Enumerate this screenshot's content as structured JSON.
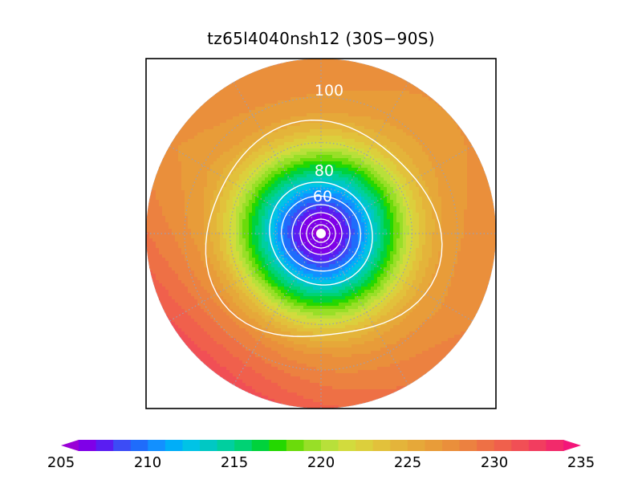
{
  "title": "tz65l4040nsh12 (30S−90S)",
  "map": {
    "projection": "polar-stereographic",
    "hemisphere": "south",
    "lat_range": [
      -90,
      -30
    ],
    "gridlines": "dotted"
  },
  "contours": {
    "color": "#ffffff",
    "labels": [
      "100",
      "80",
      "60"
    ]
  },
  "colorbar": {
    "min": 205,
    "max": 235,
    "step": 1,
    "tick_labels": [
      "205",
      "210",
      "215",
      "220",
      "225",
      "230",
      "235"
    ],
    "colors": [
      "#9a00d6",
      "#7f00e8",
      "#5a1df2",
      "#3c4cf6",
      "#1f6cfb",
      "#1290ff",
      "#00aef8",
      "#00c3e6",
      "#00c8c4",
      "#00cf9f",
      "#00d274",
      "#00d23c",
      "#24d800",
      "#6bdb0b",
      "#98df27",
      "#b8e03a",
      "#d2db3d",
      "#dccf3c",
      "#e2c13b",
      "#e4b43a",
      "#e6a839",
      "#e89c39",
      "#ea8f3b",
      "#ec8140",
      "#ee7045",
      "#f0604c",
      "#f14f55",
      "#f23d5f",
      "#f22a6b",
      "#f31679"
    ]
  }
}
